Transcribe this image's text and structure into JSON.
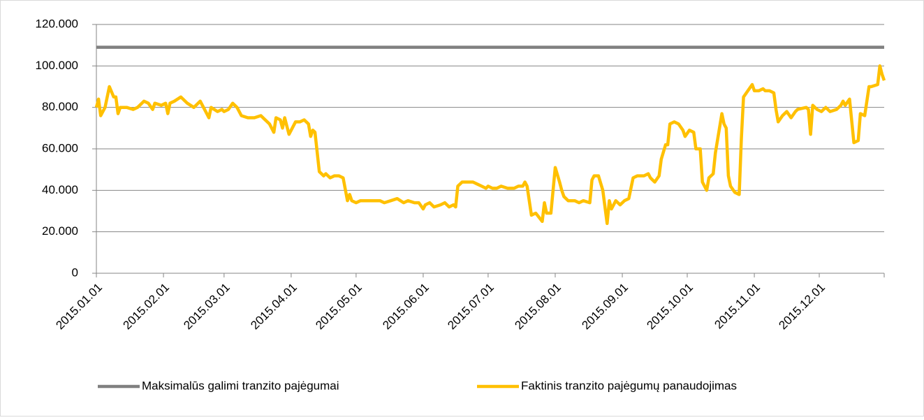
{
  "chart_data": {
    "type": "line",
    "x": [
      "2015.01.01",
      "2015.01.02",
      "2015.01.03",
      "2015.01.05",
      "2015.01.07",
      "2015.01.09",
      "2015.01.10",
      "2015.01.11",
      "2015.01.12",
      "2015.01.15",
      "2015.01.18",
      "2015.01.20",
      "2015.01.23",
      "2015.01.25",
      "2015.01.27",
      "2015.01.28",
      "2015.01.31",
      "2015.02.02",
      "2015.02.03",
      "2015.02.04",
      "2015.02.06",
      "2015.02.09",
      "2015.02.12",
      "2015.02.15",
      "2015.02.18",
      "2015.02.20",
      "2015.02.22",
      "2015.02.23",
      "2015.02.26",
      "2015.02.28",
      "2015.03.01",
      "2015.03.03",
      "2015.03.05",
      "2015.03.07",
      "2015.03.09",
      "2015.03.12",
      "2015.03.15",
      "2015.03.18",
      "2015.03.20",
      "2015.03.22",
      "2015.03.24",
      "2015.03.25",
      "2015.03.27",
      "2015.03.28",
      "2015.03.29",
      "2015.03.31",
      "2015.04.01",
      "2015.04.03",
      "2015.04.05",
      "2015.04.07",
      "2015.04.09",
      "2015.04.10",
      "2015.04.11",
      "2015.04.12",
      "2015.04.14",
      "2015.04.16",
      "2015.04.17",
      "2015.04.19",
      "2015.04.21",
      "2015.04.23",
      "2015.04.25",
      "2015.04.27",
      "2015.04.28",
      "2015.04.29",
      "2015.05.01",
      "2015.05.03",
      "2015.05.06",
      "2015.05.09",
      "2015.05.12",
      "2015.05.14",
      "2015.05.17",
      "2015.05.20",
      "2015.05.23",
      "2015.05.25",
      "2015.05.28",
      "2015.05.30",
      "2015.06.01",
      "2015.06.02",
      "2015.06.04",
      "2015.06.06",
      "2015.06.09",
      "2015.06.11",
      "2015.06.13",
      "2015.06.15",
      "2015.06.16",
      "2015.06.17",
      "2015.06.19",
      "2015.06.22",
      "2015.06.24",
      "2015.06.26",
      "2015.06.28",
      "2015.06.30",
      "2015.07.01",
      "2015.07.03",
      "2015.07.05",
      "2015.07.07",
      "2015.07.10",
      "2015.07.13",
      "2015.07.15",
      "2015.07.17",
      "2015.07.18",
      "2015.07.19",
      "2015.07.20",
      "2015.07.21",
      "2015.07.23",
      "2015.07.26",
      "2015.07.27",
      "2015.07.28",
      "2015.07.30",
      "2015.08.01",
      "2015.08.03",
      "2015.08.04",
      "2015.08.05",
      "2015.08.07",
      "2015.08.10",
      "2015.08.12",
      "2015.08.14",
      "2015.08.17",
      "2015.08.18",
      "2015.08.19",
      "2015.08.21",
      "2015.08.23",
      "2015.08.25",
      "2015.08.26",
      "2015.08.27",
      "2015.08.29",
      "2015.08.31",
      "2015.09.02",
      "2015.09.04",
      "2015.09.06",
      "2015.09.08",
      "2015.09.11",
      "2015.09.13",
      "2015.09.14",
      "2015.09.16",
      "2015.09.18",
      "2015.09.19",
      "2015.09.21",
      "2015.09.22",
      "2015.09.23",
      "2015.09.25",
      "2015.09.27",
      "2015.09.29",
      "2015.09.30",
      "2015.10.02",
      "2015.10.04",
      "2015.10.05",
      "2015.10.07",
      "2015.10.08",
      "2015.10.10",
      "2015.10.11",
      "2015.10.13",
      "2015.10.14",
      "2015.10.17",
      "2015.10.18",
      "2015.10.19",
      "2015.10.20",
      "2015.10.21",
      "2015.10.23",
      "2015.10.25",
      "2015.10.26",
      "2015.10.27",
      "2015.10.29",
      "2015.10.31",
      "2015.11.01",
      "2015.11.03",
      "2015.11.05",
      "2015.11.06",
      "2015.11.08",
      "2015.11.10",
      "2015.11.11",
      "2015.11.12",
      "2015.11.14",
      "2015.11.16",
      "2015.11.18",
      "2015.11.20",
      "2015.11.21",
      "2015.11.25",
      "2015.11.26",
      "2015.11.27",
      "2015.11.28",
      "2015.11.30",
      "2015.12.02",
      "2015.12.04",
      "2015.12.06",
      "2015.12.09",
      "2015.12.11",
      "2015.12.12",
      "2015.12.13",
      "2015.12.15",
      "2015.12.17",
      "2015.12.19",
      "2015.12.20",
      "2015.12.22",
      "2015.12.24",
      "2015.12.25",
      "2015.12.28",
      "2015.12.29",
      "2015.12.30",
      "2015.12.31"
    ],
    "series": [
      {
        "name": "Maksimalūs galimi tranzito pajėgumai",
        "color": "#808080",
        "x": [
          "2015.01.01",
          "2015.12.31"
        ],
        "values": [
          109000,
          109000
        ]
      },
      {
        "name": "Faktinis tranzito pajėgumų panaudojimas",
        "color": "#ffc000",
        "values": [
          80000,
          84000,
          76000,
          80000,
          90000,
          85000,
          85000,
          77000,
          80000,
          80000,
          79000,
          80000,
          83000,
          82000,
          79000,
          82000,
          81000,
          82000,
          77000,
          82000,
          83000,
          85000,
          82000,
          80000,
          83000,
          79000,
          75000,
          80000,
          78000,
          79000,
          78000,
          79000,
          82000,
          80000,
          76000,
          75000,
          75000,
          76000,
          74000,
          72000,
          68000,
          75000,
          74000,
          70000,
          75000,
          67000,
          69000,
          73000,
          73000,
          74000,
          72000,
          66000,
          69000,
          68000,
          49000,
          47000,
          48000,
          46000,
          47000,
          47000,
          46000,
          35000,
          38000,
          35000,
          34000,
          35000,
          35000,
          35000,
          35000,
          34000,
          35000,
          36000,
          34000,
          35000,
          34000,
          34000,
          31000,
          33000,
          34000,
          32000,
          33000,
          34000,
          32000,
          33000,
          32000,
          42000,
          44000,
          44000,
          44000,
          43000,
          42000,
          41000,
          42000,
          41000,
          41000,
          42000,
          41000,
          41000,
          42000,
          42000,
          44000,
          42000,
          35000,
          28000,
          29000,
          25000,
          34000,
          29000,
          29000,
          51000,
          44000,
          40000,
          37000,
          35000,
          35000,
          34000,
          35000,
          34000,
          45000,
          47000,
          47000,
          40000,
          24000,
          35000,
          31000,
          35000,
          33000,
          35000,
          36000,
          46000,
          47000,
          47000,
          48000,
          46000,
          44000,
          47000,
          55000,
          62000,
          62000,
          72000,
          73000,
          72000,
          69000,
          66000,
          69000,
          68000,
          60000,
          60000,
          44000,
          40000,
          46000,
          48000,
          58000,
          77000,
          72000,
          70000,
          47000,
          42000,
          39000,
          38000,
          65000,
          85000,
          88000,
          91000,
          88000,
          88000,
          89000,
          88000,
          88000,
          87000,
          79000,
          73000,
          76000,
          78000,
          75000,
          78000,
          79000,
          80000,
          79000,
          67000,
          81000,
          79000,
          78000,
          80000,
          78000,
          79000,
          81000,
          83000,
          81000,
          84000,
          63000,
          64000,
          77000,
          76000,
          90000,
          90000,
          91000,
          100000,
          96000,
          93000
        ]
      }
    ],
    "xlim": [
      "2015.01.01",
      "2015.12.31"
    ],
    "xticks": [
      "2015.01.01",
      "2015.02.01",
      "2015.03.01",
      "2015.04.01",
      "2015.05.01",
      "2015.06.01",
      "2015.07.01",
      "2015.08.01",
      "2015.09.01",
      "2015.10.01",
      "2015.11.01",
      "2015.12.01"
    ],
    "ylim": [
      0,
      120000
    ],
    "yticks": [
      0,
      {
        "value": 20000,
        "label": "20.000"
      },
      {
        "value": 40000,
        "label": "40.000"
      },
      {
        "value": 60000,
        "label": "60.000"
      },
      {
        "value": 80000,
        "label": "80.000"
      },
      {
        "value": 100000,
        "label": "100.000"
      },
      {
        "value": 120000,
        "label": "120.000"
      }
    ],
    "grid": true,
    "legend": "bottom"
  }
}
